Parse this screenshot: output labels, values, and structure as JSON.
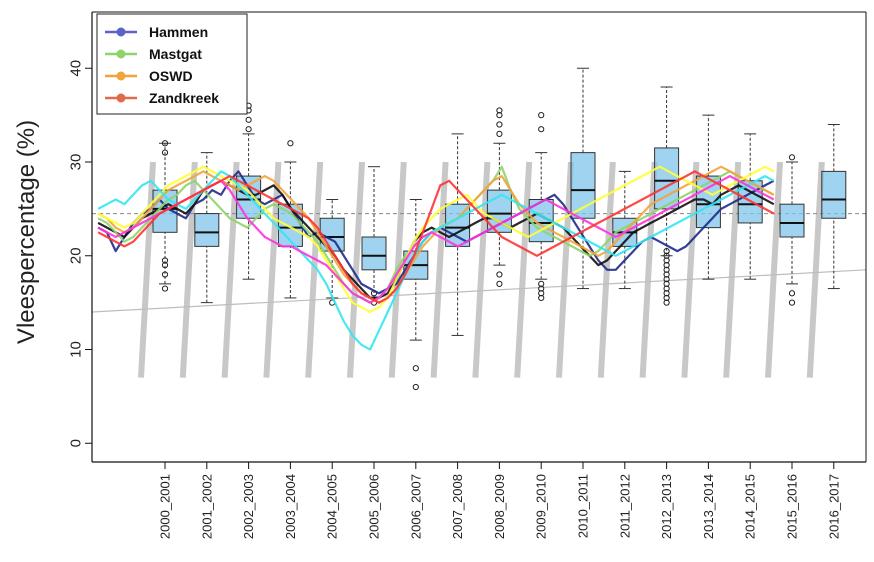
{
  "chart_data": {
    "type": "box-and-line",
    "title": "",
    "ylabel": "Vleespercentage (%)",
    "xlabel": "",
    "ylim": [
      -2,
      46
    ],
    "yticks": [
      0,
      10,
      20,
      30,
      40
    ],
    "categories": [
      "2000_2001",
      "2001_2002",
      "2002_2003",
      "2003_2004",
      "2004_2005",
      "2005_2006",
      "2006_2007",
      "2007_2008",
      "2008_2009",
      "2009_2010",
      "2010_2011",
      "2011_2012",
      "2012_2013",
      "2013_2014",
      "2014_2015",
      "2015_2016",
      "2016_2017"
    ],
    "legend": {
      "position": "top-left",
      "entries": [
        {
          "name": "Hammen",
          "color": "#5b63c9"
        },
        {
          "name": "Mastgat",
          "color": "#8ed46a"
        },
        {
          "name": "OSWD",
          "color": "#f2a43a"
        },
        {
          "name": "Zandkreek",
          "color": "#e06a4a"
        }
      ]
    },
    "boxes": [
      {
        "category": "2000_2001",
        "q1": 22.5,
        "median": 25.0,
        "q3": 27.0,
        "whisker_low": 17.0,
        "whisker_high": 32.0,
        "outliers": [
          16.5,
          18.0,
          19.0,
          19.5,
          31.0,
          32.0
        ]
      },
      {
        "category": "2001_2002",
        "q1": 21.0,
        "median": 22.5,
        "q3": 24.5,
        "whisker_low": 15.0,
        "whisker_high": 31.0,
        "outliers": []
      },
      {
        "category": "2002_2003",
        "q1": 24.0,
        "median": 26.0,
        "q3": 28.5,
        "whisker_low": 17.5,
        "whisker_high": 33.0,
        "outliers": [
          33.5,
          34.5,
          35.5,
          36.0
        ]
      },
      {
        "category": "2003_2004",
        "q1": 21.0,
        "median": 23.0,
        "q3": 25.5,
        "whisker_low": 15.5,
        "whisker_high": 30.0,
        "outliers": [
          32.0
        ]
      },
      {
        "category": "2004_2005",
        "q1": 20.5,
        "median": 22.0,
        "q3": 24.0,
        "whisker_low": 15.5,
        "whisker_high": 26.0,
        "outliers": [
          15.0
        ]
      },
      {
        "category": "2005_2006",
        "q1": 18.5,
        "median": 20.0,
        "q3": 22.0,
        "whisker_low": 15.5,
        "whisker_high": 29.5,
        "outliers": [
          15.0,
          16.0
        ]
      },
      {
        "category": "2006_2007",
        "q1": 17.5,
        "median": 19.0,
        "q3": 20.5,
        "whisker_low": 11.0,
        "whisker_high": 26.0,
        "outliers": [
          6.0,
          8.0
        ]
      },
      {
        "category": "2007_2008",
        "q1": 21.0,
        "median": 23.0,
        "q3": 25.5,
        "whisker_low": 11.5,
        "whisker_high": 33.0,
        "outliers": []
      },
      {
        "category": "2008_2009",
        "q1": 22.5,
        "median": 24.5,
        "q3": 27.0,
        "whisker_low": 19.0,
        "whisker_high": 32.0,
        "outliers": [
          17.0,
          18.0,
          33.0,
          34.0,
          35.0,
          35.5
        ]
      },
      {
        "category": "2009_2010",
        "q1": 21.5,
        "median": 23.5,
        "q3": 26.0,
        "whisker_low": 17.5,
        "whisker_high": 31.0,
        "outliers": [
          15.5,
          16.0,
          16.5,
          17.0,
          33.5,
          35.0
        ]
      },
      {
        "category": "2010_2011",
        "q1": 24.0,
        "median": 27.0,
        "q3": 31.0,
        "whisker_low": 16.5,
        "whisker_high": 40.0,
        "outliers": []
      },
      {
        "category": "2011_2012",
        "q1": 21.0,
        "median": 22.5,
        "q3": 24.0,
        "whisker_low": 16.5,
        "whisker_high": 29.0,
        "outliers": []
      },
      {
        "category": "2012_2013",
        "q1": 25.0,
        "median": 28.0,
        "q3": 31.5,
        "whisker_low": 20.0,
        "whisker_high": 38.0,
        "outliers": [
          15.0,
          15.5,
          16.0,
          16.5,
          17.0,
          17.5,
          18.0,
          18.5,
          19.0,
          19.5,
          20.0,
          20.5
        ]
      },
      {
        "category": "2013_2014",
        "q1": 23.0,
        "median": 25.5,
        "q3": 28.5,
        "whisker_low": 17.5,
        "whisker_high": 35.0,
        "outliers": []
      },
      {
        "category": "2014_2015",
        "q1": 23.5,
        "median": 25.5,
        "q3": 28.0,
        "whisker_low": 17.5,
        "whisker_high": 33.0,
        "outliers": []
      },
      {
        "category": "2015_2016",
        "q1": 22.0,
        "median": 23.5,
        "q3": 25.5,
        "whisker_low": 17.0,
        "whisker_high": 30.0,
        "outliers": [
          15.0,
          16.0,
          30.5
        ]
      },
      {
        "category": "2016_2017",
        "q1": 24.0,
        "median": 26.0,
        "q3": 29.0,
        "whisker_low": 16.5,
        "whisker_high": 34.0,
        "outliers": []
      }
    ],
    "series": [
      {
        "color": "#1f2a8a",
        "values": [
          23.0,
          22.5,
          20.5,
          22.0,
          23.5,
          24.5,
          25.0,
          26.0,
          25.0,
          24.5,
          24.0,
          25.5,
          26.0,
          27.0,
          26.5,
          28.0,
          29.0,
          27.5,
          26.0,
          25.5,
          26.0,
          26.5,
          25.0,
          23.5,
          22.0,
          22.5,
          22.0,
          21.5,
          20.0,
          18.5,
          17.0,
          16.5,
          16.0,
          16.5,
          17.0,
          18.5,
          20.0,
          21.5,
          22.5,
          23.0,
          22.5,
          22.0,
          21.5,
          22.0,
          22.5,
          23.0,
          23.5,
          24.0,
          24.5,
          25.0,
          25.5,
          26.0,
          26.5,
          25.5,
          24.0,
          22.5,
          21.0,
          19.5,
          18.5,
          18.5,
          19.5,
          20.5,
          21.5,
          22.0,
          21.5,
          21.0,
          20.5,
          21.0,
          22.0,
          23.0,
          24.0,
          25.0,
          25.5,
          26.0,
          26.5,
          27.0,
          27.5,
          28.0
        ]
      },
      {
        "color": "#111111",
        "values": [
          23.5,
          23.0,
          22.5,
          22.0,
          23.0,
          24.0,
          24.5,
          25.0,
          25.5,
          25.0,
          24.5,
          25.5,
          27.0,
          27.5,
          28.0,
          27.5,
          27.0,
          26.5,
          26.5,
          27.0,
          27.5,
          26.5,
          25.0,
          24.0,
          23.0,
          22.0,
          21.0,
          20.0,
          18.5,
          17.5,
          16.5,
          15.5,
          15.5,
          16.0,
          17.5,
          19.5,
          21.5,
          22.5,
          23.0,
          22.5,
          22.0,
          22.5,
          23.0,
          23.5,
          24.0,
          24.0,
          23.5,
          23.0,
          23.5,
          24.0,
          24.5,
          24.0,
          23.5,
          23.0,
          22.0,
          21.0,
          20.0,
          19.0,
          19.5,
          20.5,
          21.5,
          22.5,
          23.0,
          23.5,
          24.0,
          24.5,
          25.0,
          25.5,
          26.0,
          26.0,
          25.5,
          26.5,
          27.0,
          27.5,
          27.0,
          26.5,
          26.0,
          25.5
        ]
      },
      {
        "color": "#8ed46a",
        "values": [
          24.0,
          23.5,
          22.5,
          21.5,
          22.0,
          23.0,
          24.0,
          25.0,
          26.0,
          26.5,
          27.5,
          28.0,
          27.0,
          26.0,
          25.0,
          24.0,
          23.5,
          23.0,
          24.0,
          25.0,
          25.5,
          25.0,
          24.5,
          23.5,
          22.5,
          21.5,
          20.0,
          18.5,
          17.0,
          16.0,
          15.5,
          15.0,
          15.5,
          16.5,
          18.5,
          20.0,
          21.0,
          22.0,
          22.5,
          23.0,
          23.5,
          24.0,
          25.0,
          26.0,
          27.0,
          28.0,
          29.5,
          27.0,
          25.0,
          24.0,
          23.0,
          22.5,
          22.0,
          21.5,
          21.0,
          20.5,
          20.0,
          20.5,
          21.5,
          22.5,
          23.0,
          23.5,
          24.0,
          24.5,
          25.0,
          25.5,
          26.0,
          26.5,
          27.0,
          27.5,
          28.0,
          28.5,
          29.0,
          28.5,
          28.0,
          27.5,
          27.0,
          26.5
        ]
      },
      {
        "color": "#f2a43a",
        "values": [
          24.5,
          24.0,
          23.0,
          22.5,
          23.0,
          24.0,
          25.0,
          26.0,
          27.0,
          27.5,
          28.0,
          28.5,
          29.0,
          28.5,
          28.0,
          27.5,
          27.0,
          27.5,
          28.0,
          28.5,
          28.0,
          27.0,
          26.0,
          25.0,
          24.0,
          22.5,
          21.0,
          19.5,
          18.0,
          17.0,
          16.0,
          15.5,
          15.0,
          15.5,
          16.5,
          18.0,
          19.5,
          21.0,
          22.0,
          23.0,
          23.5,
          24.0,
          25.0,
          26.0,
          27.0,
          28.0,
          28.5,
          27.0,
          25.5,
          24.5,
          23.5,
          23.0,
          22.5,
          22.0,
          21.5,
          21.0,
          20.5,
          20.0,
          20.5,
          21.5,
          22.5,
          23.5,
          24.5,
          25.5,
          26.0,
          26.5,
          27.0,
          27.5,
          28.0,
          28.5,
          29.0,
          29.5,
          29.0,
          28.5,
          28.0,
          27.5,
          27.0,
          26.5
        ]
      },
      {
        "color": "#ffff33",
        "values": [
          24.5,
          24.0,
          23.5,
          23.0,
          23.5,
          24.5,
          25.5,
          26.5,
          27.5,
          28.0,
          28.5,
          29.0,
          29.5,
          29.0,
          28.5,
          28.0,
          27.5,
          27.0,
          26.0,
          25.0,
          24.0,
          23.5,
          23.0,
          22.5,
          22.0,
          21.0,
          19.5,
          18.0,
          16.5,
          15.0,
          14.5,
          14.0,
          14.5,
          15.5,
          17.5,
          19.5,
          21.5,
          23.0,
          24.0,
          25.0,
          25.5,
          26.0,
          26.5,
          25.5,
          24.5,
          24.0,
          23.5,
          23.0,
          22.5,
          22.0,
          22.5,
          23.0,
          23.5,
          24.0,
          24.5,
          25.0,
          25.5,
          26.0,
          26.5,
          27.0,
          27.5,
          28.0,
          28.5,
          29.0,
          29.5,
          29.0,
          28.5,
          28.0,
          27.5,
          27.0,
          26.5,
          27.0,
          27.5,
          28.0,
          28.5,
          29.0,
          29.5,
          29.0
        ]
      },
      {
        "color": "#33e6f2",
        "values": [
          25.0,
          25.5,
          26.0,
          25.5,
          26.5,
          27.5,
          28.0,
          27.0,
          26.0,
          25.5,
          25.0,
          26.0,
          27.0,
          28.0,
          29.0,
          28.5,
          27.5,
          26.5,
          25.5,
          24.5,
          23.5,
          22.5,
          21.5,
          20.5,
          19.5,
          18.5,
          17.0,
          15.0,
          13.0,
          11.5,
          10.5,
          10.0,
          12.0,
          14.0,
          16.0,
          18.0,
          20.0,
          21.5,
          22.5,
          23.0,
          23.5,
          24.0,
          24.5,
          25.0,
          25.5,
          26.0,
          26.5,
          26.0,
          25.5,
          25.0,
          24.5,
          24.0,
          23.5,
          23.0,
          22.5,
          22.0,
          21.5,
          21.0,
          20.5,
          20.0,
          20.5,
          21.0,
          21.5,
          22.0,
          22.5,
          23.0,
          23.5,
          24.0,
          24.5,
          25.0,
          25.5,
          26.0,
          26.5,
          27.0,
          27.5,
          28.0,
          28.5,
          28.0
        ]
      },
      {
        "color": "#ff33dd",
        "values": [
          23.0,
          22.5,
          22.0,
          22.5,
          23.0,
          23.5,
          24.0,
          24.5,
          25.0,
          25.5,
          26.0,
          26.5,
          27.0,
          27.5,
          28.0,
          27.0,
          25.5,
          24.0,
          23.0,
          22.0,
          21.5,
          21.0,
          21.0,
          20.5,
          20.0,
          19.5,
          19.0,
          18.0,
          17.0,
          16.0,
          15.5,
          15.0,
          15.5,
          16.5,
          18.0,
          19.5,
          21.0,
          22.0,
          22.5,
          22.0,
          21.5,
          21.0,
          21.5,
          22.0,
          22.5,
          23.0,
          23.5,
          24.0,
          24.5,
          25.0,
          25.5,
          26.0,
          25.5,
          25.0,
          24.5,
          24.0,
          23.5,
          23.0,
          22.5,
          22.0,
          22.5,
          23.0,
          23.5,
          24.0,
          24.5,
          25.0,
          25.5,
          26.0,
          26.5,
          27.0,
          27.5,
          28.0,
          28.5,
          28.0,
          27.5,
          27.0,
          26.5,
          26.0
        ]
      },
      {
        "color": "#ff3333",
        "values": [
          22.5,
          22.0,
          21.5,
          21.0,
          21.5,
          22.5,
          23.5,
          24.5,
          25.0,
          25.5,
          26.0,
          26.5,
          27.0,
          27.5,
          28.0,
          28.5,
          28.0,
          27.5,
          27.0,
          26.5,
          26.0,
          25.5,
          25.0,
          24.5,
          24.0,
          23.0,
          21.5,
          20.0,
          18.5,
          17.0,
          16.0,
          15.5,
          15.0,
          15.5,
          16.5,
          18.0,
          20.0,
          22.5,
          25.0,
          27.5,
          28.0,
          27.0,
          26.0,
          25.0,
          24.0,
          23.0,
          22.0,
          21.5,
          21.0,
          20.5,
          20.0,
          20.5,
          21.0,
          21.5,
          22.0,
          22.5,
          23.0,
          23.5,
          24.0,
          24.5,
          25.0,
          25.5,
          26.0,
          26.5,
          27.0,
          27.5,
          28.0,
          28.5,
          29.0,
          28.5,
          28.0,
          27.5,
          27.0,
          26.5,
          26.0,
          25.5,
          25.0,
          24.5
        ]
      }
    ]
  }
}
